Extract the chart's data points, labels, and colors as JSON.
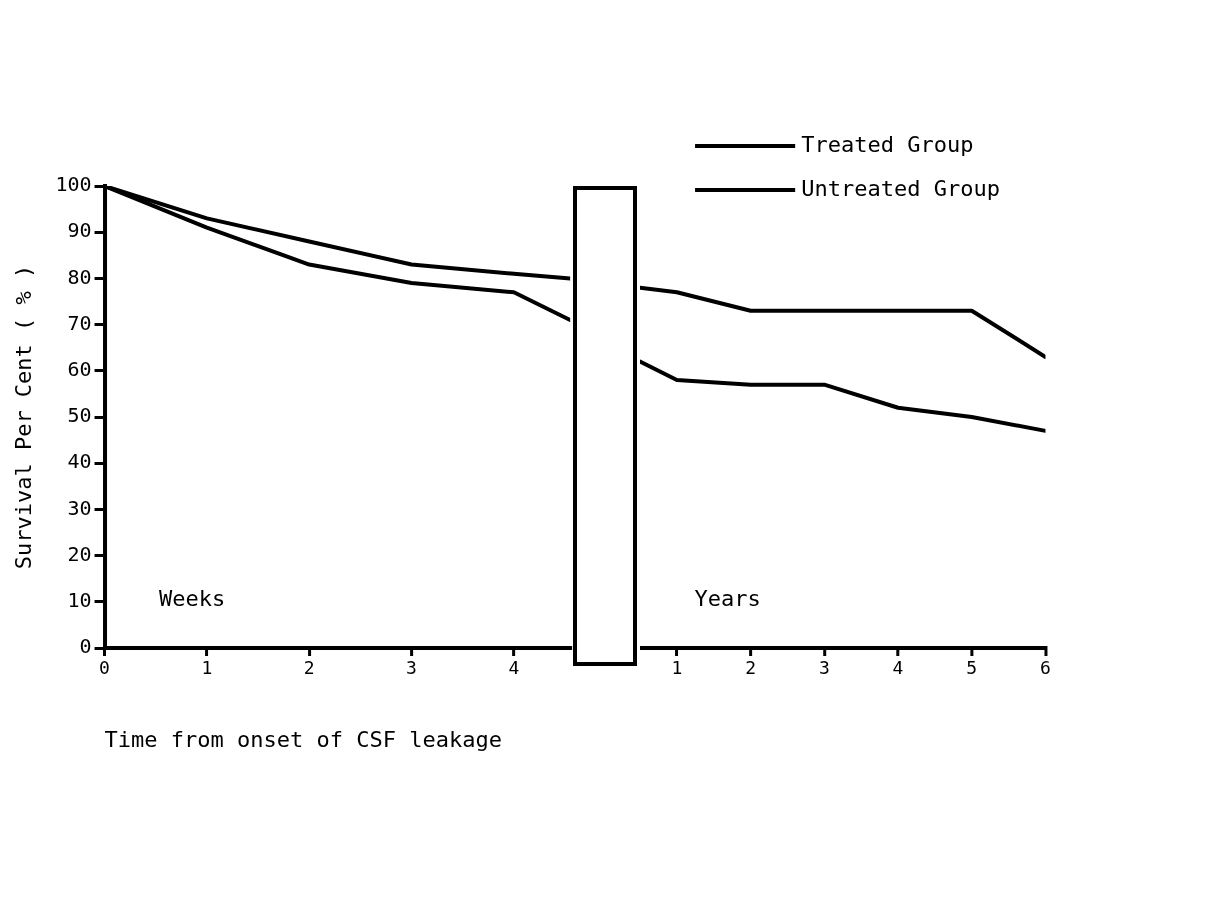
{
  "chart_data": [
    {
      "type": "line",
      "xlabel": "Time from onset of CSF leakage",
      "ylabel": "Survival Per Cent ( % )",
      "series": [
        {
          "color": "#000000",
          "x": [
            0,
            1,
            2,
            3,
            4,
            4.55
          ],
          "values": [
            100,
            93,
            88,
            83,
            81,
            80
          ]
        },
        {
          "color": "#000000",
          "x": [
            0,
            1,
            2,
            3,
            4,
            4.55
          ],
          "values": [
            100,
            91,
            83,
            79,
            77,
            71
          ]
        }
      ],
      "xlim": [
        0,
        4.55
      ],
      "xticks": [
        0,
        1,
        2,
        3,
        4
      ],
      "ylim": [
        0,
        100
      ],
      "yticks": [
        0,
        10,
        20,
        30,
        40,
        50,
        60,
        70,
        80,
        90,
        100
      ],
      "grid": false,
      "marker": "none",
      "line_style": "solid",
      "annotations": [
        "Weeks"
      ]
    },
    {
      "type": "line",
      "series": [
        {
          "name": "Treated Group",
          "color": "#000000",
          "x": [
            0.5,
            1,
            2,
            3,
            4,
            5,
            6
          ],
          "values": [
            78,
            77,
            73,
            73,
            73,
            73,
            63
          ]
        },
        {
          "name": "Untreated Group",
          "color": "#000000",
          "x": [
            0.5,
            1,
            2,
            3,
            4,
            5,
            6
          ],
          "values": [
            62,
            58,
            57,
            57,
            52,
            50,
            47
          ]
        }
      ],
      "xlim": [
        0.5,
        6
      ],
      "xticks": [
        1,
        2,
        3,
        4,
        5,
        6
      ],
      "ylim": [
        0,
        100
      ],
      "tick_labels": "x",
      "grid": false,
      "legend": "top right",
      "marker": "none",
      "line_style": "solid",
      "annotations": [
        "Years"
      ]
    }
  ]
}
